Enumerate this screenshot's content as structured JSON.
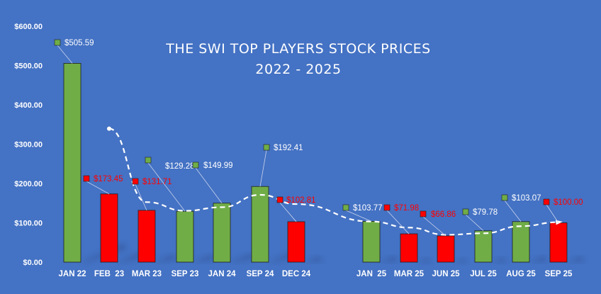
{
  "chart_data": {
    "type": "bar",
    "title": "THE SWI TOP PLAYERS STOCK PRICES",
    "subtitle": "2022 - 2025",
    "xlabel": "",
    "ylabel": "",
    "ylim": [
      0,
      600
    ],
    "yticks": [
      "$0.00",
      "$100.00",
      "$200.00",
      "$300.00",
      "$400.00",
      "$500.00",
      "$600.00"
    ],
    "grid": false,
    "categories": [
      "JAN 22",
      "FEB  23",
      "MAR 23",
      "SEP 23",
      "JAN 24",
      "SEP 24",
      "DEC 24",
      "JAN  25",
      "MAR 25",
      "JUN 25",
      "JUL 25",
      "AUG 25",
      "SEP 25"
    ],
    "values": [
      505.59,
      173.45,
      131.71,
      129.28,
      149.99,
      192.41,
      102.81,
      103.77,
      71.98,
      66.86,
      79.78,
      103.07,
      100.0
    ],
    "labels": [
      "$505.59",
      "$173.45",
      "$131.71",
      "$129.28",
      "$149.99",
      "$192.41",
      "$102.81",
      "$103.77",
      "$71.98",
      "$66.86",
      "$79.78",
      "$103.07",
      "$100.00"
    ],
    "direction": [
      "up",
      "down",
      "down",
      "up",
      "up",
      "up",
      "down",
      "up",
      "down",
      "down",
      "up",
      "up",
      "down"
    ],
    "trendline": {
      "style": "dashed",
      "color": "#ffffff"
    },
    "colors": {
      "up": "#70AD47",
      "down": "#FF0000",
      "background": "#4472C4",
      "text": "#ffffff"
    }
  }
}
